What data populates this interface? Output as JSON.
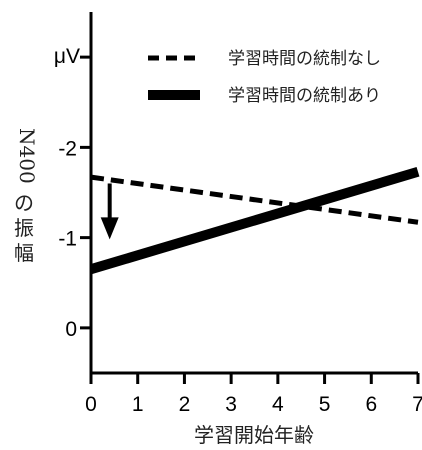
{
  "chart_data": {
    "type": "line",
    "xlabel": "学習開始年齢",
    "ylabel": "N400 の振幅",
    "unit_label": "μV",
    "x_ticks": [
      0,
      1,
      2,
      3,
      4,
      5,
      6,
      7
    ],
    "y_ticks": [
      {
        "value": -2,
        "label": "-2"
      },
      {
        "value": -1,
        "label": "-1"
      },
      {
        "value": 0,
        "label": "0"
      }
    ],
    "xlim": [
      0,
      7
    ],
    "ylim": [
      0.5,
      -3.5
    ],
    "y_inverted": true,
    "grid": false,
    "legend_position": "top-right",
    "series": [
      {
        "name": "学習時間の統制なし",
        "style": "dashed",
        "color": "#000000",
        "x": [
          0,
          7
        ],
        "y": [
          -1.67,
          -1.17
        ]
      },
      {
        "name": "学習時間の統制あり",
        "style": "solid",
        "color": "#000000",
        "x": [
          0,
          7
        ],
        "y": [
          -0.65,
          -1.73
        ]
      }
    ],
    "annotation": {
      "type": "arrow",
      "direction": "down",
      "x": 0.4,
      "y_from": -1.6,
      "y_to": -0.98
    }
  }
}
